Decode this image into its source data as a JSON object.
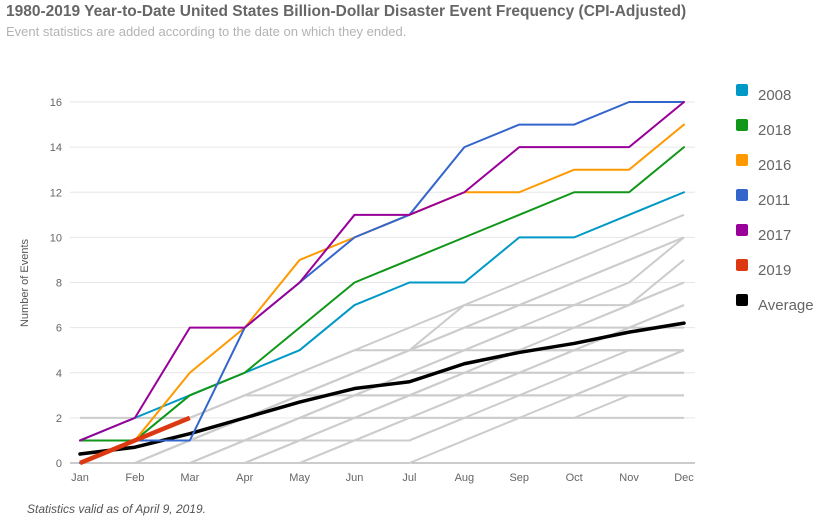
{
  "title": "1980-2019 Year-to-Date United States Billion-Dollar Disaster Event Frequency (CPI-Adjusted)",
  "subtitle": "Event statistics are added according to the date on which they ended.",
  "footnote": "Statistics valid as of April 9, 2019.",
  "chart_data": {
    "type": "line",
    "title": "1980-2019 Year-to-Date United States Billion-Dollar Disaster Event Frequency (CPI-Adjusted)",
    "xlabel": "",
    "ylabel": "Number of Events",
    "categories": [
      "Jan",
      "Feb",
      "Mar",
      "Apr",
      "May",
      "Jun",
      "Jul",
      "Aug",
      "Sep",
      "Oct",
      "Nov",
      "Dec"
    ],
    "ylim": [
      0,
      16
    ],
    "yticks": [
      0,
      2,
      4,
      6,
      8,
      10,
      12,
      14,
      16
    ],
    "grid": true,
    "legend_position": "right",
    "background_series_color": "#cccccc",
    "background_series": [
      [
        0,
        0,
        1,
        2,
        3,
        4,
        5,
        6,
        7,
        8,
        9,
        10
      ],
      [
        0,
        1,
        2,
        3,
        4,
        5,
        6,
        7,
        8,
        9,
        10,
        11
      ],
      [
        1,
        1,
        1,
        2,
        3,
        4,
        5,
        7,
        7,
        7,
        8,
        10
      ],
      [
        0,
        0,
        0,
        1,
        2,
        3,
        4,
        4,
        5,
        5,
        5,
        5
      ],
      [
        0,
        0,
        0,
        0,
        1,
        2,
        3,
        4,
        5,
        6,
        7,
        8
      ],
      [
        0,
        0,
        1,
        1,
        2,
        3,
        3,
        4,
        4,
        5,
        6,
        7
      ],
      [
        2,
        2,
        2,
        3,
        4,
        5,
        5,
        5,
        6,
        6,
        6,
        7
      ],
      [
        1,
        1,
        1,
        1,
        2,
        2,
        3,
        3,
        4,
        4,
        5,
        5
      ],
      [
        0,
        0,
        0,
        0,
        0,
        0,
        0,
        1,
        2,
        3,
        4,
        5
      ],
      [
        0,
        0,
        0,
        0,
        0,
        1,
        1,
        2,
        3,
        3,
        3,
        3
      ],
      [
        0,
        0,
        1,
        1,
        2,
        3,
        4,
        5,
        5,
        5,
        5,
        5
      ],
      [
        0,
        0,
        0,
        1,
        2,
        3,
        3,
        4,
        4,
        4,
        4,
        4
      ],
      [
        1,
        1,
        1,
        1,
        2,
        2,
        2,
        3,
        3,
        3,
        4,
        4
      ],
      [
        0,
        1,
        1,
        2,
        3,
        3,
        4,
        5,
        6,
        6,
        7,
        8
      ],
      [
        0,
        0,
        0,
        0,
        1,
        2,
        3,
        3,
        3,
        4,
        4,
        5
      ],
      [
        1,
        1,
        2,
        3,
        3,
        4,
        5,
        6,
        6,
        7,
        7,
        9
      ],
      [
        0,
        0,
        0,
        1,
        1,
        1,
        2,
        2,
        2,
        2,
        3,
        3
      ],
      [
        0,
        0,
        0,
        0,
        0,
        1,
        2,
        3,
        4,
        5,
        6,
        6
      ],
      [
        0,
        0,
        1,
        2,
        3,
        4,
        5,
        6,
        7,
        8,
        9,
        10
      ],
      [
        0,
        0,
        0,
        0,
        1,
        1,
        1,
        2,
        2,
        2,
        2,
        2
      ]
    ],
    "series": [
      {
        "name": "2008",
        "color": "#0099c6",
        "values": [
          1,
          2,
          3,
          4,
          5,
          7,
          8,
          8,
          10,
          10,
          11,
          12
        ]
      },
      {
        "name": "2018",
        "color": "#109618",
        "values": [
          1,
          1,
          3,
          4,
          6,
          8,
          9,
          10,
          11,
          12,
          12,
          14
        ]
      },
      {
        "name": "2016",
        "color": "#ff9900",
        "values": [
          0,
          1,
          4,
          6,
          9,
          10,
          11,
          12,
          12,
          13,
          13,
          15
        ]
      },
      {
        "name": "2011",
        "color": "#3366cc",
        "values": [
          0,
          1,
          1,
          6,
          8,
          10,
          11,
          14,
          15,
          15,
          16,
          16
        ]
      },
      {
        "name": "2017",
        "color": "#990099",
        "values": [
          1,
          2,
          6,
          6,
          8,
          11,
          11,
          12,
          14,
          14,
          14,
          16
        ]
      },
      {
        "name": "2019",
        "color": "#dc3912",
        "values": [
          0,
          1,
          2
        ]
      },
      {
        "name": "Average",
        "color": "#000000",
        "values": [
          0.4,
          0.7,
          1.3,
          2.0,
          2.7,
          3.3,
          3.6,
          4.4,
          4.9,
          5.3,
          5.8,
          6.2
        ]
      }
    ]
  }
}
